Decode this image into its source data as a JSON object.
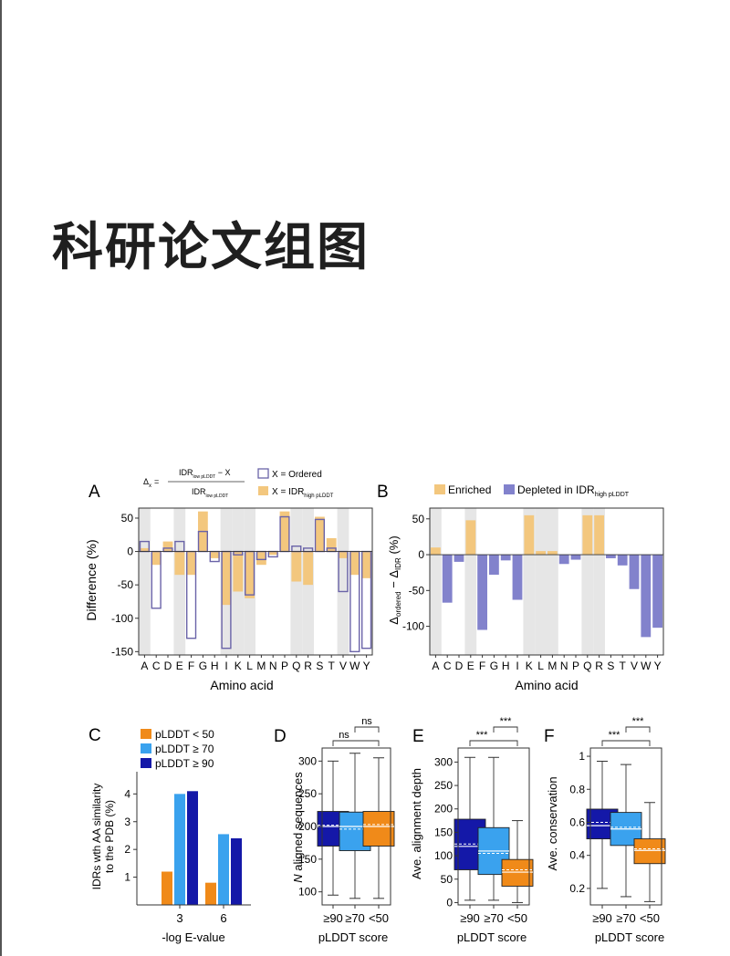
{
  "page": {
    "title": "科研论文组图"
  },
  "colors": {
    "enriched": "#f3c77e",
    "depleted": "#8282cc",
    "ordered_outline": "#6a63a8",
    "shade": "#e6e6e6",
    "plddt_low": "#f08a19",
    "plddt_mid": "#3aa2ee",
    "plddt_high": "#1418a8"
  },
  "panels": {
    "A": {
      "label": "A",
      "formula_delta": "Δ",
      "formula_delta_sub": "x",
      "formula_eq": "=",
      "formula_num": "IDR",
      "formula_num_sub": "low pLDDT",
      "formula_num_tail": " − X",
      "formula_den": "IDR",
      "formula_den_sub": "low pLDDT",
      "legend_ordered": "X = Ordered",
      "legend_idr": "X = IDR",
      "legend_idr_sub": "high pLDDT",
      "ylabel": "Difference (%)",
      "xlabel": "Amino acid",
      "yticks": [
        "50",
        "0",
        "-50",
        "-100",
        "-150"
      ]
    },
    "B": {
      "label": "B",
      "legend_enriched": "Enriched",
      "legend_depleted": "Depleted in IDR",
      "legend_depleted_sub": "high pLDDT",
      "ylabel_delta1": "Δ",
      "ylabel_sub1": "ordered",
      "ylabel_mid": " − Δ",
      "ylabel_sub2": "IDR",
      "ylabel_unit": " (%)",
      "xlabel": "Amino acid",
      "yticks": [
        "50",
        "0",
        "-50",
        "-100"
      ]
    },
    "C": {
      "label": "C",
      "legend": [
        "pLDDT < 50",
        "pLDDT ≥ 70",
        "pLDDT ≥ 90"
      ],
      "ylabel_line1": "IDRs wth AA similarity",
      "ylabel_line2": "to the PDB (%)",
      "xlabel": "-log E-value",
      "xticks": [
        "3",
        "6"
      ],
      "yticks": [
        "4",
        "3",
        "2",
        "1"
      ]
    },
    "D": {
      "label": "D",
      "ylabel_italic": "N",
      "ylabel_rest": " aligned sequences",
      "xlabel": "pLDDT score",
      "xticks": [
        "≥90",
        "≥70",
        "<50"
      ],
      "yticks": [
        "300",
        "250",
        "200",
        "150",
        "100"
      ],
      "sig_top": "ns",
      "sig_bottom": "ns"
    },
    "E": {
      "label": "E",
      "ylabel": "Ave. alignment depth",
      "xlabel": "pLDDT score",
      "xticks": [
        "≥90",
        "≥70",
        "<50"
      ],
      "yticks": [
        "300",
        "250",
        "200",
        "150",
        "100",
        "50",
        "0"
      ],
      "sig_top": "***",
      "sig_bottom": "***"
    },
    "F": {
      "label": "F",
      "ylabel": "Ave. conservation",
      "xlabel": "pLDDT score",
      "xticks": [
        "≥90",
        "≥70",
        "<50"
      ],
      "yticks": [
        "1",
        "0.8",
        "0.6",
        "0.4",
        "0.2"
      ],
      "sig_top": "***",
      "sig_bottom": "***"
    }
  },
  "chart_data": [
    {
      "panel": "A",
      "type": "bar",
      "categories": [
        "A",
        "C",
        "D",
        "E",
        "F",
        "G",
        "H",
        "I",
        "K",
        "L",
        "M",
        "N",
        "P",
        "Q",
        "R",
        "S",
        "T",
        "V",
        "W",
        "Y"
      ],
      "shaded_categories": [
        "A",
        "E",
        "I",
        "K",
        "L",
        "Q",
        "R",
        "V"
      ],
      "series": [
        {
          "name": "X = Ordered",
          "values": [
            15,
            -85,
            5,
            15,
            -130,
            30,
            -15,
            -145,
            -5,
            -65,
            -12,
            -8,
            52,
            8,
            5,
            48,
            5,
            -60,
            -150,
            -145
          ]
        },
        {
          "name": "X = IDR",
          "values": [
            5,
            -20,
            15,
            -35,
            -35,
            60,
            -10,
            -80,
            -60,
            -70,
            -20,
            -5,
            60,
            -45,
            -50,
            52,
            20,
            -10,
            -35,
            -40
          ]
        }
      ],
      "ylim": [
        -155,
        65
      ]
    },
    {
      "panel": "B",
      "type": "bar",
      "categories": [
        "A",
        "C",
        "D",
        "E",
        "F",
        "G",
        "H",
        "I",
        "K",
        "L",
        "M",
        "N",
        "P",
        "Q",
        "R",
        "S",
        "T",
        "V",
        "W",
        "Y"
      ],
      "shaded_categories": [
        "A",
        "E",
        "K",
        "L",
        "M",
        "Q",
        "R"
      ],
      "values": [
        10,
        -67,
        -10,
        48,
        -105,
        -28,
        -8,
        -63,
        55,
        5,
        5,
        -13,
        -7,
        55,
        55,
        -5,
        -15,
        -48,
        -115,
        -102
      ],
      "ylim": [
        -140,
        65
      ]
    },
    {
      "panel": "C",
      "type": "bar",
      "categories": [
        "3",
        "6"
      ],
      "series": [
        {
          "name": "pLDDT < 50",
          "values": [
            1.2,
            0.8
          ]
        },
        {
          "name": "pLDDT ≥ 70",
          "values": [
            4.0,
            2.55
          ]
        },
        {
          "name": "pLDDT ≥ 90",
          "values": [
            4.1,
            2.4
          ]
        }
      ],
      "ylim": [
        0,
        4.8
      ]
    },
    {
      "panel": "D",
      "type": "box",
      "categories": [
        "≥90",
        "≥70",
        "<50"
      ],
      "boxes": [
        {
          "whisker_low": 95,
          "q1": 170,
          "median": 200,
          "mean": 202,
          "q3": 223,
          "whisker_high": 300
        },
        {
          "whisker_low": 90,
          "q1": 163,
          "median": 200,
          "mean": 196,
          "q3": 222,
          "whisker_high": 312
        },
        {
          "whisker_low": 90,
          "q1": 170,
          "median": 200,
          "mean": 203,
          "q3": 223,
          "whisker_high": 305
        }
      ],
      "ylim": [
        80,
        320
      ]
    },
    {
      "panel": "E",
      "type": "box",
      "categories": [
        "≥90",
        "≥70",
        "<50"
      ],
      "boxes": [
        {
          "whisker_low": 5,
          "q1": 70,
          "median": 120,
          "mean": 125,
          "q3": 178,
          "whisker_high": 310
        },
        {
          "whisker_low": 5,
          "q1": 60,
          "median": 110,
          "mean": 105,
          "q3": 160,
          "whisker_high": 310
        },
        {
          "whisker_low": 0,
          "q1": 35,
          "median": 65,
          "mean": 70,
          "q3": 92,
          "whisker_high": 175
        }
      ],
      "ylim": [
        -5,
        330
      ]
    },
    {
      "panel": "F",
      "type": "box",
      "categories": [
        "≥90",
        "≥70",
        "<50"
      ],
      "boxes": [
        {
          "whisker_low": 0.2,
          "q1": 0.5,
          "median": 0.58,
          "mean": 0.6,
          "q3": 0.68,
          "whisker_high": 0.97
        },
        {
          "whisker_low": 0.15,
          "q1": 0.46,
          "median": 0.56,
          "mean": 0.57,
          "q3": 0.66,
          "whisker_high": 0.95
        },
        {
          "whisker_low": 0.12,
          "q1": 0.35,
          "median": 0.43,
          "mean": 0.44,
          "q3": 0.5,
          "whisker_high": 0.72
        }
      ],
      "ylim": [
        0.1,
        1.05
      ]
    }
  ]
}
